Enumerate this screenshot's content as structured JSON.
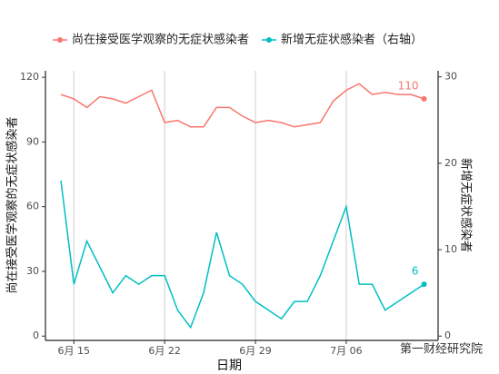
{
  "chart_data": {
    "type": "line",
    "x": [
      "6月 14",
      "6月 15",
      "6月 16",
      "6月 17",
      "6月 18",
      "6月 19",
      "6月 20",
      "6月 21",
      "6月 22",
      "6月 23",
      "6月 24",
      "6月 25",
      "6月 26",
      "6月 27",
      "6月 28",
      "6月 29",
      "6月 30",
      "7月 01",
      "7月 02",
      "7月 03",
      "7月 04",
      "7月 05",
      "7月 06",
      "7月 07",
      "7月 08",
      "7月 09",
      "7月 10",
      "7月 11",
      "7月 12"
    ],
    "xticks": [
      "6月 15",
      "6月 22",
      "6月 29",
      "7月 06"
    ],
    "xlabel": "日期",
    "ylabel": "尚在接受医学观察的无症状感染者",
    "y2label": "新增无症状感染者",
    "ylim": [
      -2,
      123
    ],
    "yticks": [
      0,
      30,
      60,
      90,
      120
    ],
    "y2lim": [
      -0.5,
      30.7
    ],
    "y2ticks": [
      0,
      10,
      20,
      30
    ],
    "grid": "x",
    "legend": "top",
    "series": [
      {
        "name": "尚在接受医学观察的无症状感染者",
        "color": "#f8766d",
        "values": [
          112,
          110,
          106,
          111,
          110,
          108,
          111,
          114,
          99,
          100,
          97,
          97,
          106,
          106,
          102,
          99,
          100,
          99,
          97,
          98,
          99,
          109,
          114,
          117,
          112,
          113,
          112,
          112,
          110
        ]
      },
      {
        "name": "新增无症状感染者（右轴）",
        "color": "#00bfc4",
        "axis": "y2",
        "values": [
          18,
          6,
          11,
          8,
          5,
          7,
          6,
          7,
          7,
          3,
          1,
          5,
          12,
          7,
          6,
          4,
          3,
          2,
          4,
          4,
          7,
          11,
          15,
          6,
          6,
          3,
          4,
          5,
          6
        ]
      }
    ],
    "watermark": "第一财经研究院"
  }
}
